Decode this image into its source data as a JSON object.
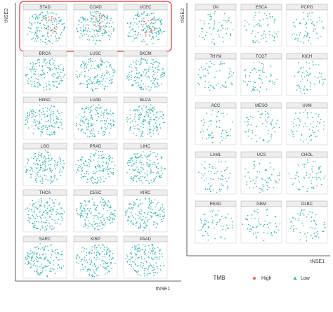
{
  "figure": {
    "left": {
      "y_label": "tNSE2",
      "x_label": "tNSE1",
      "panels": [
        "STAD",
        "COAD",
        "UCEC",
        "BRCA",
        "LUSC",
        "SKCM",
        "HNSC",
        "LUAD",
        "BLCA",
        "LGG",
        "PRAD",
        "LIHC",
        "THCA",
        "CESC",
        "KIRC",
        "SARC",
        "KIRP",
        "PAAD"
      ]
    },
    "right": {
      "y_label": "tNSE2",
      "x_label": "tNSE1",
      "panels": [
        "OV",
        "ESCA",
        "PCPG",
        "THYM",
        "TCGT",
        "KICH",
        "ACC",
        "MESO",
        "UVM",
        "LAML",
        "UCS",
        "CHOL",
        "READ",
        "GBM",
        "DLBC"
      ]
    },
    "legend": {
      "title": "TMB",
      "items": [
        "High",
        "Low"
      ]
    }
  }
}
